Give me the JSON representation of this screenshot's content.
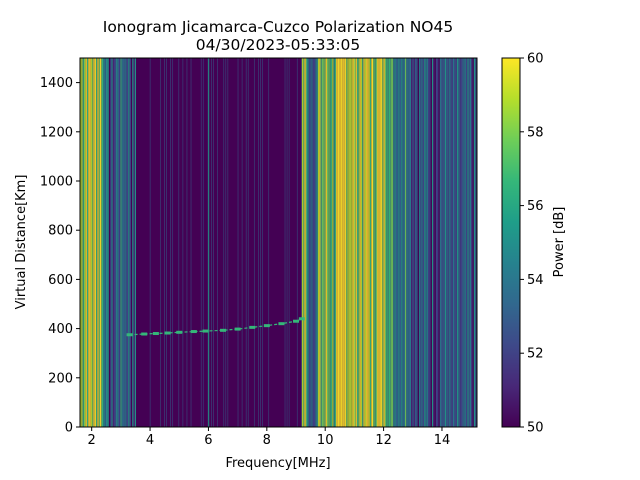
{
  "title_line1": "Ionogram Jicamarca-Cuzco Polarization NO45",
  "title_line2": "04/30/2023-05:33:05",
  "colors": {
    "viridis": [
      "#440154",
      "#482878",
      "#3e4989",
      "#31688e",
      "#26828e",
      "#1f9e89",
      "#35b779",
      "#6ece58",
      "#b5de2b",
      "#fde725"
    ],
    "background": "#440154"
  },
  "chart_data": {
    "type": "heatmap",
    "title": "Ionogram Jicamarca-Cuzco Polarization NO45\n04/30/2023-05:33:05",
    "xlabel": "Frequency[MHz]",
    "ylabel": "Virtual Distance[Km]",
    "xlim": [
      1.6,
      15.2
    ],
    "ylim": [
      0,
      1500
    ],
    "x_ticks": [
      2,
      4,
      6,
      8,
      10,
      12,
      14
    ],
    "x_tick_labels": [
      "2",
      "4",
      "6",
      "8",
      "10",
      "12",
      "14"
    ],
    "y_ticks": [
      0,
      200,
      400,
      600,
      800,
      1000,
      1200,
      1400
    ],
    "y_tick_labels": [
      "0",
      "200",
      "400",
      "600",
      "800",
      "1000",
      "1200",
      "1400"
    ],
    "colorbar": {
      "label": "Power [dB]",
      "vmin": 50,
      "vmax": 60,
      "ticks": [
        50,
        52,
        54,
        56,
        58,
        60
      ],
      "tick_labels": [
        "50",
        "52",
        "54",
        "56",
        "58",
        "60"
      ],
      "colormap": "viridis"
    },
    "bands": [
      {
        "f0": 1.6,
        "f1": 1.75,
        "level": 0.85
      },
      {
        "f0": 1.75,
        "f1": 2.35,
        "level": 0.95
      },
      {
        "f0": 2.35,
        "f1": 2.5,
        "level": 0.6
      },
      {
        "f0": 2.5,
        "f1": 2.85,
        "level": 0.3
      },
      {
        "f0": 2.85,
        "f1": 3.3,
        "level": 0.45
      },
      {
        "f0": 3.3,
        "f1": 3.5,
        "level": 0.3
      },
      {
        "f0": 9.2,
        "f1": 9.35,
        "level": 0.95
      },
      {
        "f0": 9.35,
        "f1": 9.75,
        "level": 0.45
      },
      {
        "f0": 9.75,
        "f1": 10.45,
        "level": 0.8
      },
      {
        "f0": 10.45,
        "f1": 11.0,
        "level": 1.0
      },
      {
        "f0": 11.0,
        "f1": 11.6,
        "level": 0.9
      },
      {
        "f0": 11.6,
        "f1": 12.2,
        "level": 0.95
      },
      {
        "f0": 12.2,
        "f1": 12.9,
        "level": 0.6
      },
      {
        "f0": 12.9,
        "f1": 14.2,
        "level": 0.35
      },
      {
        "f0": 14.2,
        "f1": 15.2,
        "level": 0.25
      }
    ],
    "trace": {
      "name": "",
      "x": [
        3.3,
        3.8,
        4.2,
        4.6,
        5.0,
        5.5,
        5.9,
        6.5,
        7.0,
        7.5,
        8.0,
        8.5,
        9.0,
        9.2
      ],
      "y": [
        375,
        378,
        380,
        382,
        385,
        388,
        390,
        393,
        398,
        405,
        412,
        420,
        430,
        440
      ]
    },
    "vertical_lines": [
      6.0
    ]
  }
}
